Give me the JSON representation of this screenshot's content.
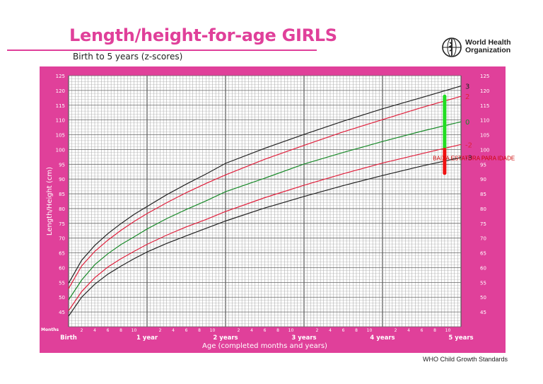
{
  "header": {
    "title": "Length/height-for-age GIRLS",
    "subtitle": "Birth to 5 years (z-scores)",
    "org_line1": "World Health",
    "org_line2": "Organization"
  },
  "footer": {
    "text": "WHO Child Growth Standards"
  },
  "colors": {
    "brand": "#e0409a",
    "grid_bg": "#ffffff",
    "z0": "#1a8a2a",
    "z2": "#e0203c",
    "z3": "#222222",
    "marker_green": "#22dd22",
    "marker_red": "#ee1111"
  },
  "chart_data": {
    "type": "line",
    "title": "Length/height-for-age GIRLS",
    "subtitle": "Birth to 5 years (z-scores)",
    "xlabel": "Age (completed months and years)",
    "ylabel": "Length/Height (cm)",
    "xlim": [
      0,
      60
    ],
    "ylim": [
      40,
      125
    ],
    "x_unit_label": "Months",
    "y_ticks": [
      45,
      50,
      55,
      60,
      65,
      70,
      75,
      80,
      85,
      90,
      95,
      100,
      105,
      110,
      115,
      120,
      125
    ],
    "x_year_labels": [
      {
        "x": 0,
        "label": "Birth"
      },
      {
        "x": 12,
        "label": "1 year"
      },
      {
        "x": 24,
        "label": "2 years"
      },
      {
        "x": 36,
        "label": "3 years"
      },
      {
        "x": 48,
        "label": "4 years"
      },
      {
        "x": 60,
        "label": "5 years"
      }
    ],
    "x_month_labels": [
      "2",
      "4",
      "6",
      "8",
      "10"
    ],
    "grid": true,
    "x": [
      0,
      2,
      4,
      6,
      8,
      10,
      12,
      15,
      18,
      21,
      24,
      30,
      36,
      42,
      48,
      54,
      60
    ],
    "series": [
      {
        "name": "3",
        "color": "#222222",
        "values": [
          54.7,
          62.5,
          67.5,
          71.5,
          74.9,
          78.0,
          80.7,
          84.7,
          88.3,
          91.7,
          95.3,
          100.4,
          105.1,
          109.6,
          113.8,
          117.6,
          121.5
        ]
      },
      {
        "name": "2",
        "color": "#e0203c",
        "values": [
          52.9,
          60.6,
          65.5,
          69.3,
          72.6,
          75.6,
          78.3,
          82.0,
          85.4,
          88.5,
          91.4,
          96.7,
          101.4,
          106.0,
          110.1,
          114.2,
          118.0
        ]
      },
      {
        "name": "0",
        "color": "#1a8a2a",
        "values": [
          49.1,
          55.8,
          61.0,
          64.7,
          67.8,
          70.4,
          73.1,
          76.6,
          79.7,
          82.6,
          85.7,
          90.3,
          95.1,
          99.0,
          102.7,
          106.2,
          109.4
        ]
      },
      {
        "name": "-2",
        "color": "#e0203c",
        "values": [
          45.4,
          51.9,
          56.6,
          60.2,
          63.0,
          65.5,
          67.9,
          71.0,
          73.8,
          76.3,
          79.0,
          83.7,
          87.9,
          91.8,
          95.4,
          98.6,
          101.7
        ]
      },
      {
        "name": "-3",
        "color": "#222222",
        "values": [
          43.6,
          50.0,
          54.4,
          57.8,
          60.5,
          63.0,
          65.3,
          68.2,
          70.8,
          73.3,
          75.8,
          80.2,
          84.1,
          87.8,
          91.2,
          94.4,
          97.3
        ]
      }
    ],
    "annotation": {
      "text": "BAIXA ESTATURA PARA IDADE",
      "color": "#cc0000"
    },
    "markers": [
      {
        "color": "#22dd22",
        "x": 57.5,
        "y_from": 100.5,
        "y_to": 118
      },
      {
        "color": "#ee1111",
        "x": 57.5,
        "y_from": 92,
        "y_to": 100
      }
    ]
  }
}
